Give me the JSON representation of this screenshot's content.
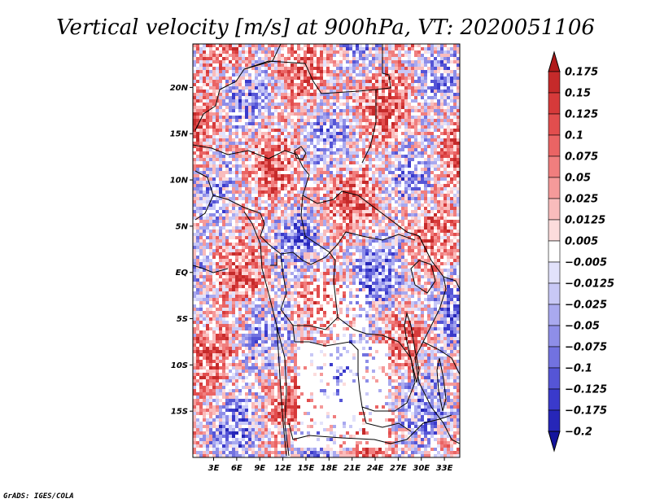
{
  "chart_data": {
    "type": "heatmap",
    "title": "Vertical velocity [m/s] at 900hPa, VT: 2020051106",
    "variable": "Vertical velocity",
    "units": "m/s",
    "level": "900hPa",
    "valid_time": "2020051106",
    "x_ticks": [
      "3E",
      "6E",
      "9E",
      "12E",
      "15E",
      "18E",
      "21E",
      "24E",
      "27E",
      "30E",
      "33E"
    ],
    "x_tick_values": [
      3,
      6,
      9,
      12,
      15,
      18,
      21,
      24,
      27,
      30,
      33
    ],
    "y_ticks": [
      "20N",
      "15N",
      "10N",
      "5N",
      "EQ",
      "5S",
      "10S",
      "15S"
    ],
    "y_tick_values": [
      20,
      15,
      10,
      5,
      0,
      -5,
      -10,
      -15
    ],
    "xlim": [
      0.3,
      35.0
    ],
    "ylim": [
      -20.0,
      24.7
    ],
    "colorbar": {
      "levels": [
        "0.175",
        "0.15",
        "0.125",
        "0.1",
        "0.075",
        "0.05",
        "0.025",
        "0.0125",
        "0.005",
        "−0.005",
        "−0.0125",
        "−0.025",
        "−0.05",
        "−0.075",
        "−0.1",
        "−0.125",
        "−0.175",
        "−0.2"
      ],
      "colors": [
        "#b01a1a",
        "#c52a2a",
        "#d63a3a",
        "#e24e4e",
        "#ea6464",
        "#f07e7e",
        "#f59a9a",
        "#f9bcbc",
        "#fcdcdc",
        "#ffffff",
        "#e2e2fb",
        "#c8c8f6",
        "#a9a9ef",
        "#8e8ee8",
        "#7272e0",
        "#5555d6",
        "#3a3acb",
        "#2626b8",
        "#14149c"
      ]
    },
    "footer": "GrADS: IGES/COLA"
  }
}
